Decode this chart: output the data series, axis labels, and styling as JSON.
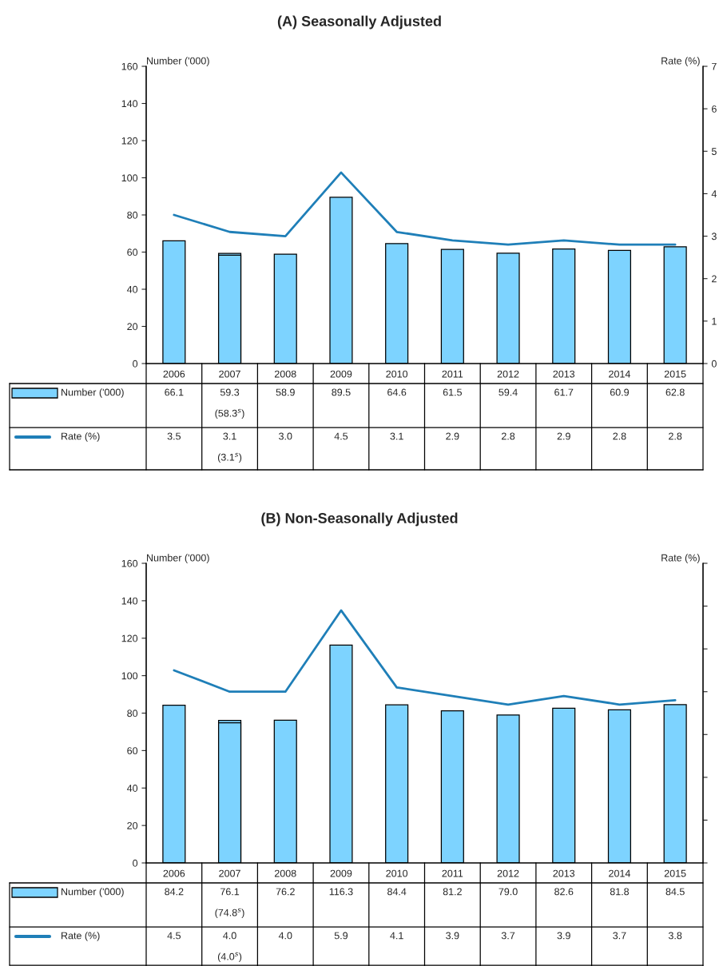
{
  "chart_data": [
    {
      "type": "bar",
      "title": "(A) Seasonally Adjusted",
      "ylabel": "Number ('000)",
      "y2label": "Rate (%)",
      "legend": "bottom",
      "grid": false,
      "categories": [
        "2006",
        "2007",
        "2008",
        "2009",
        "2010",
        "2011",
        "2012",
        "2013",
        "2014",
        "2015"
      ],
      "ylim": [
        0,
        160
      ],
      "yticks": [
        0,
        20,
        40,
        60,
        80,
        100,
        120,
        140,
        160
      ],
      "y2lim": [
        0,
        7
      ],
      "y2ticks": [
        0,
        1,
        2,
        3,
        4,
        5,
        6,
        7
      ],
      "series": [
        {
          "name": "Number ('000)",
          "color": "#7dd3ff",
          "values": [
            66.1,
            59.3,
            58.9,
            89.5,
            64.6,
            61.5,
            59.4,
            61.7,
            60.9,
            62.8
          ],
          "value_labels": [
            "66.1",
            "59.3",
            "58.9",
            "89.5",
            "64.6",
            "61.5",
            "59.4",
            "61.7",
            "60.9",
            "62.8"
          ]
        },
        {
          "color": "#7dd3ff",
          "values": [
            null,
            58.3,
            null,
            null,
            null,
            null,
            null,
            null,
            null,
            null
          ]
        },
        {
          "name": "Rate (%)",
          "type": "line",
          "axis": "y2",
          "color": "#1f7fb8",
          "values": [
            3.5,
            3.1,
            3.0,
            4.5,
            3.1,
            2.9,
            2.8,
            2.9,
            2.8,
            2.8
          ],
          "value_labels": [
            "3.5",
            "3.1",
            "3.0",
            "4.5",
            "3.1",
            "2.9",
            "2.8",
            "2.9",
            "2.8",
            "2.8"
          ]
        }
      ],
      "annotations": [
        "(58.3$^{s}$)",
        "(3.1$^{s}$)"
      ]
    },
    {
      "type": "bar",
      "title": "(B) Non-Seasonally Adjusted",
      "ylabel": "Number ('000)",
      "y2label": "Rate (%)",
      "legend": "bottom",
      "grid": false,
      "categories": [
        "2006",
        "2007",
        "2008",
        "2009",
        "2010",
        "2011",
        "2012",
        "2013",
        "2014",
        "2015"
      ],
      "ylim": [
        0,
        160
      ],
      "yticks": [
        0,
        20,
        40,
        60,
        80,
        100,
        120,
        140,
        160
      ],
      "y2lim": [
        0,
        7
      ],
      "y2ticks": [
        {
          "value": 0,
          "label": null
        },
        {
          "value": 1,
          "label": null
        },
        {
          "value": 2,
          "label": null
        },
        {
          "value": 3,
          "label": null
        },
        {
          "value": 4,
          "label": null
        },
        {
          "value": 5,
          "label": null
        },
        {
          "value": 6,
          "label": null
        },
        {
          "value": 7,
          "label": null
        }
      ],
      "series": [
        {
          "name": "Number ('000)",
          "color": "#7dd3ff",
          "values": [
            84.2,
            76.1,
            76.2,
            116.3,
            84.4,
            81.2,
            79.0,
            82.6,
            81.8,
            84.5
          ],
          "value_labels": [
            "84.2",
            "76.1",
            "76.2",
            "116.3",
            "84.4",
            "81.2",
            "79.0",
            "82.6",
            "81.8",
            "84.5"
          ]
        },
        {
          "color": "#7dd3ff",
          "values": [
            null,
            74.8,
            null,
            null,
            null,
            null,
            null,
            null,
            null,
            null
          ]
        },
        {
          "name": "Rate (%)",
          "type": "line",
          "axis": "y2",
          "color": "#1f7fb8",
          "values": [
            4.5,
            4.0,
            4.0,
            5.9,
            4.1,
            3.9,
            3.7,
            3.9,
            3.7,
            3.8
          ],
          "value_labels": [
            "4.5",
            "4.0",
            "4.0",
            "5.9",
            "4.1",
            "3.9",
            "3.7",
            "3.9",
            "3.7",
            "3.8"
          ]
        }
      ],
      "annotations": [
        "(74.8$^{s}$)",
        "(4.0$^{s}$)"
      ]
    }
  ]
}
